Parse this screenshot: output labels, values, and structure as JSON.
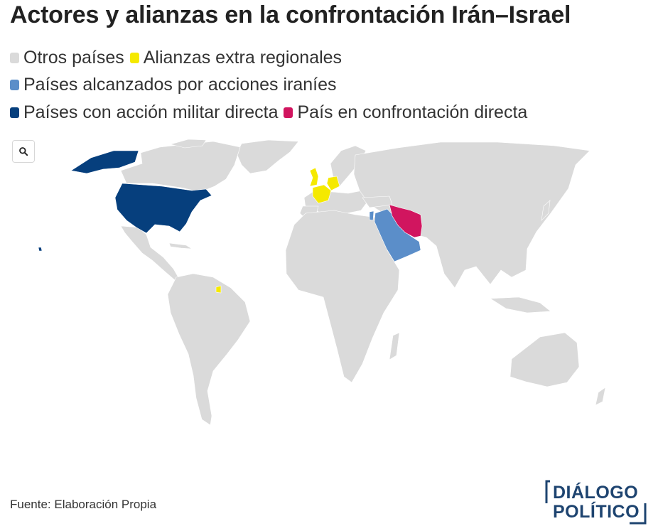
{
  "title": "Actores y alianzas en la confrontación Irán–Israel",
  "legend": {
    "items": [
      {
        "label": "Otros países",
        "color": "#dadada"
      },
      {
        "label": "Alianzas extra regionales",
        "color": "#f5e900"
      },
      {
        "label": "Países alcanzados por acciones iraníes",
        "color": "#5b8ec9"
      },
      {
        "label": "Países con acción militar directa",
        "color": "#063f7d"
      },
      {
        "label": "País en confrontación directa",
        "color": "#d1155f"
      }
    ]
  },
  "map": {
    "zoom_button_icon": "search-icon",
    "regions": [
      {
        "name": "Estados Unidos",
        "category": "Países con acción militar directa"
      },
      {
        "name": "Reino Unido",
        "category": "Alianzas extra regionales"
      },
      {
        "name": "Francia",
        "category": "Alianzas extra regionales"
      },
      {
        "name": "Alemania",
        "category": "Alianzas extra regionales"
      },
      {
        "name": "Guayana Francesa",
        "category": "Alianzas extra regionales"
      },
      {
        "name": "Irán",
        "category": "País en confrontación directa"
      },
      {
        "name": "Arabia Saudita",
        "category": "Países alcanzados por acciones iraníes"
      },
      {
        "name": "Emiratos Árabes Unidos",
        "category": "Países alcanzados por acciones iraníes"
      },
      {
        "name": "Israel",
        "category": "Países alcanzados por acciones iraníes"
      }
    ]
  },
  "source": "Fuente: Elaboración Propia",
  "logo": {
    "line1": "DIÁLOGO",
    "line2": "POLÍTICO",
    "color": "#1e4470"
  }
}
